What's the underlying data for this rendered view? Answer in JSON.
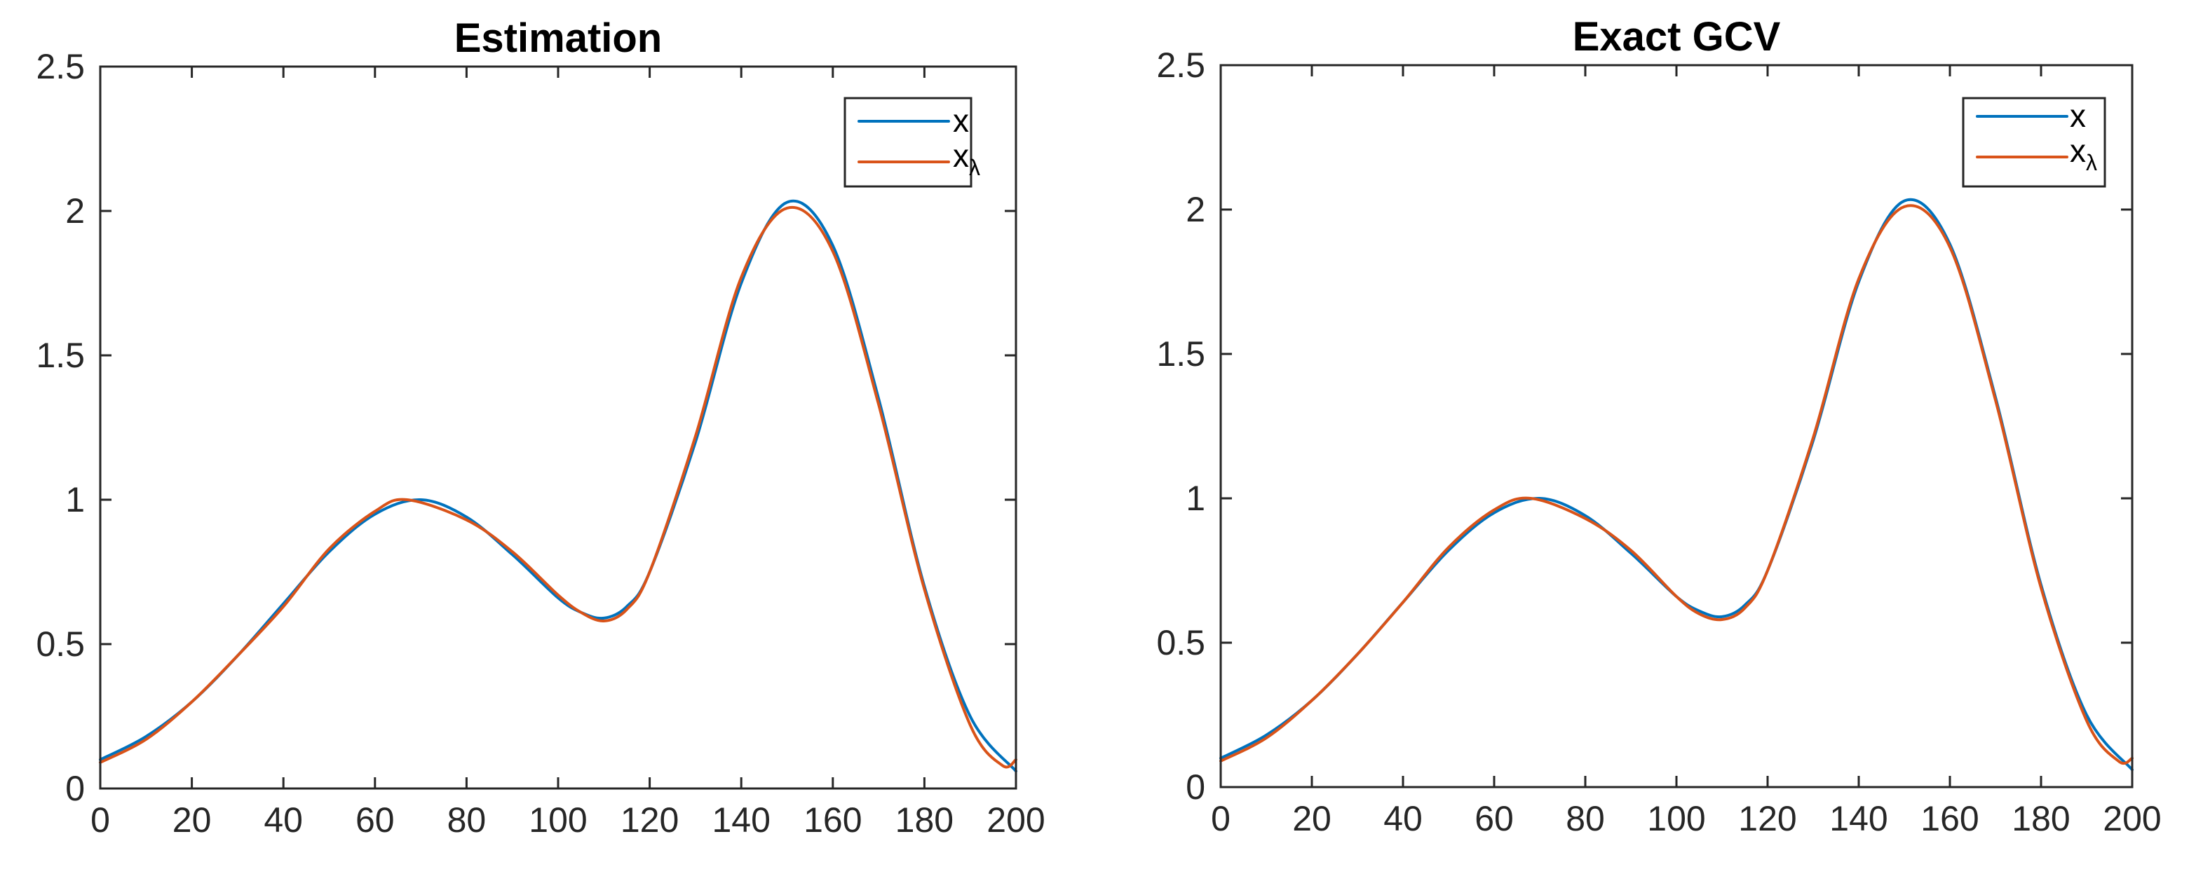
{
  "chart_data": [
    {
      "type": "line",
      "title": "Estimation",
      "xlabel": "",
      "ylabel": "",
      "xlim": [
        0,
        200
      ],
      "ylim": [
        0,
        2.5
      ],
      "xticks": [
        "0",
        "20",
        "40",
        "60",
        "80",
        "100",
        "120",
        "140",
        "160",
        "180",
        "200"
      ],
      "yticks": [
        "0",
        "0.5",
        "1",
        "1.5",
        "2",
        "2.5"
      ],
      "grid": false,
      "legend_position": "top-right",
      "series": [
        {
          "name": "x",
          "color": "#0072BD",
          "x": [
            0,
            10,
            20,
            30,
            40,
            50,
            60,
            70,
            80,
            90,
            100,
            105,
            110,
            115,
            120,
            130,
            140,
            150,
            160,
            170,
            180,
            190,
            200
          ],
          "y": [
            0.1,
            0.18,
            0.3,
            0.46,
            0.64,
            0.82,
            0.95,
            1.0,
            0.94,
            0.81,
            0.66,
            0.61,
            0.59,
            0.63,
            0.75,
            1.2,
            1.75,
            2.03,
            1.88,
            1.35,
            0.7,
            0.25,
            0.06
          ]
        },
        {
          "name": "xλ",
          "label_main": "x",
          "label_sub": "λ",
          "color": "#D95319",
          "x": [
            0,
            10,
            20,
            30,
            40,
            50,
            60,
            67,
            80,
            90,
            100,
            105,
            110,
            115,
            120,
            130,
            140,
            150,
            160,
            170,
            180,
            190,
            197,
            200
          ],
          "y": [
            0.09,
            0.17,
            0.3,
            0.46,
            0.63,
            0.83,
            0.96,
            1.0,
            0.93,
            0.82,
            0.67,
            0.61,
            0.58,
            0.62,
            0.75,
            1.22,
            1.77,
            2.01,
            1.86,
            1.33,
            0.69,
            0.22,
            0.08,
            0.1
          ]
        }
      ]
    },
    {
      "type": "line",
      "title": "Exact GCV",
      "xlabel": "",
      "ylabel": "",
      "xlim": [
        0,
        200
      ],
      "ylim": [
        0,
        2.5
      ],
      "xticks": [
        "0",
        "20",
        "40",
        "60",
        "80",
        "100",
        "120",
        "140",
        "160",
        "180",
        "200"
      ],
      "yticks": [
        "0",
        "0.5",
        "1",
        "1.5",
        "2",
        "2.5"
      ],
      "grid": false,
      "legend_position": "top-right",
      "series": [
        {
          "name": "x",
          "color": "#0072BD",
          "x": [
            0,
            10,
            20,
            30,
            40,
            50,
            60,
            70,
            80,
            90,
            100,
            105,
            110,
            115,
            120,
            130,
            140,
            150,
            160,
            170,
            180,
            190,
            200
          ],
          "y": [
            0.1,
            0.18,
            0.3,
            0.46,
            0.64,
            0.82,
            0.95,
            1.0,
            0.94,
            0.81,
            0.66,
            0.61,
            0.59,
            0.63,
            0.75,
            1.2,
            1.75,
            2.03,
            1.88,
            1.35,
            0.7,
            0.25,
            0.06
          ]
        },
        {
          "name": "xλ",
          "label_main": "x",
          "label_sub": "λ",
          "color": "#D95319",
          "x": [
            0,
            10,
            20,
            30,
            40,
            50,
            60,
            68,
            80,
            90,
            100,
            105,
            110,
            115,
            120,
            130,
            140,
            150,
            160,
            170,
            180,
            190,
            197,
            200
          ],
          "y": [
            0.09,
            0.17,
            0.3,
            0.46,
            0.64,
            0.83,
            0.96,
            1.0,
            0.93,
            0.82,
            0.66,
            0.6,
            0.58,
            0.62,
            0.75,
            1.21,
            1.76,
            2.01,
            1.87,
            1.34,
            0.69,
            0.23,
            0.09,
            0.1
          ]
        }
      ]
    }
  ]
}
